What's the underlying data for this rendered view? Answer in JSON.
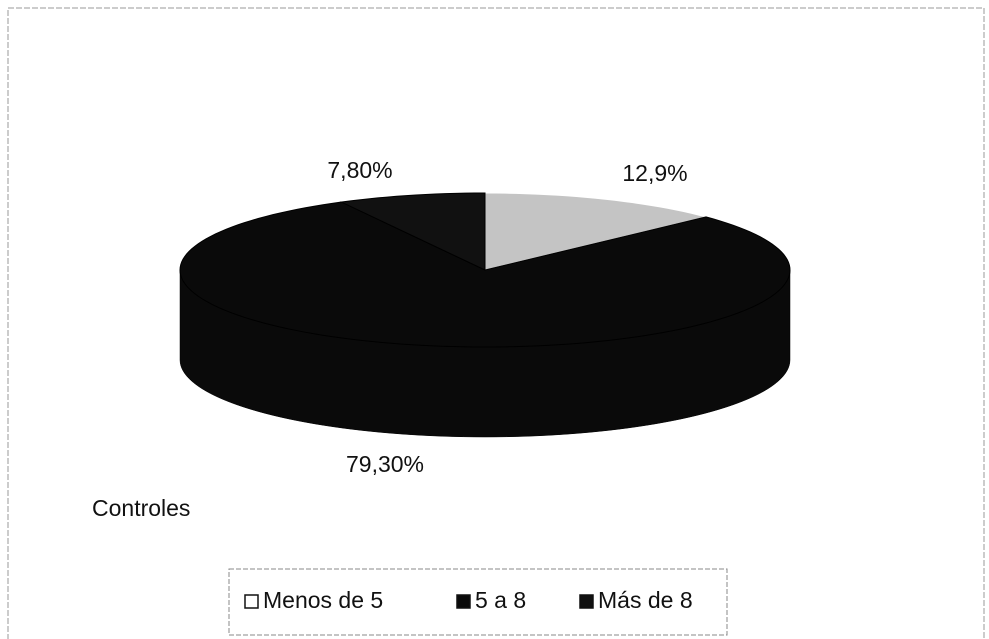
{
  "chart_data": {
    "type": "pie",
    "title": "Controles",
    "categories": [
      "Menos de 5",
      "5 a 8",
      "Más de 8"
    ],
    "values": [
      12.9,
      79.3,
      7.8
    ],
    "value_labels": [
      "12,9%",
      "79,30%",
      "7,80%"
    ],
    "colors": [
      "#c4c4c4",
      "#0a0a0a",
      "#111111"
    ],
    "legend": "bottom"
  }
}
